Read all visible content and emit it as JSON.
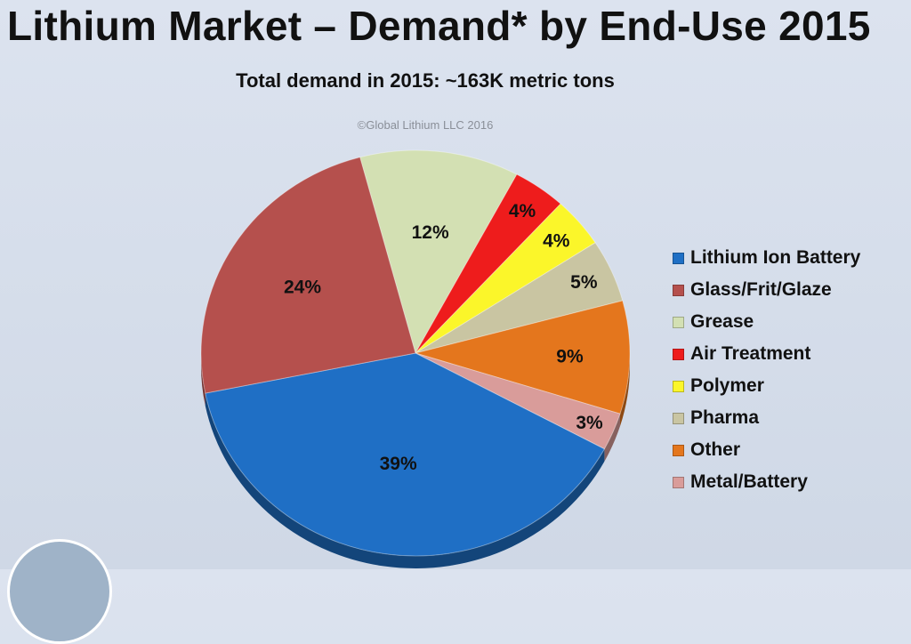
{
  "chart_data": {
    "type": "pie",
    "title": "Lithium Market – Demand* by End-Use 2015",
    "subtitle": "Total demand in 2015:  ~163K metric tons",
    "annotation": "©Global Lithium LLC 2016",
    "legend_position": "right",
    "slices": [
      {
        "name": "Lithium Ion Battery",
        "value": 39,
        "label": "39%",
        "color": "#1f6fc5"
      },
      {
        "name": "Glass/Frit/Glaze",
        "value": 24,
        "label": "24%",
        "color": "#b5504d"
      },
      {
        "name": "Grease",
        "value": 12,
        "label": "12%",
        "color": "#d3e0b3"
      },
      {
        "name": "Air Treatment",
        "value": 4,
        "label": "4%",
        "color": "#ee1c1c"
      },
      {
        "name": "Polymer",
        "value": 4,
        "label": "4%",
        "color": "#fbf62a"
      },
      {
        "name": "Pharma",
        "value": 5,
        "label": "5%",
        "color": "#c9c5a2"
      },
      {
        "name": "Other",
        "value": 9,
        "label": "9%",
        "color": "#e4761d"
      },
      {
        "name": "Metal/Battery",
        "value": 3,
        "label": "3%",
        "color": "#d99c9a"
      }
    ]
  }
}
